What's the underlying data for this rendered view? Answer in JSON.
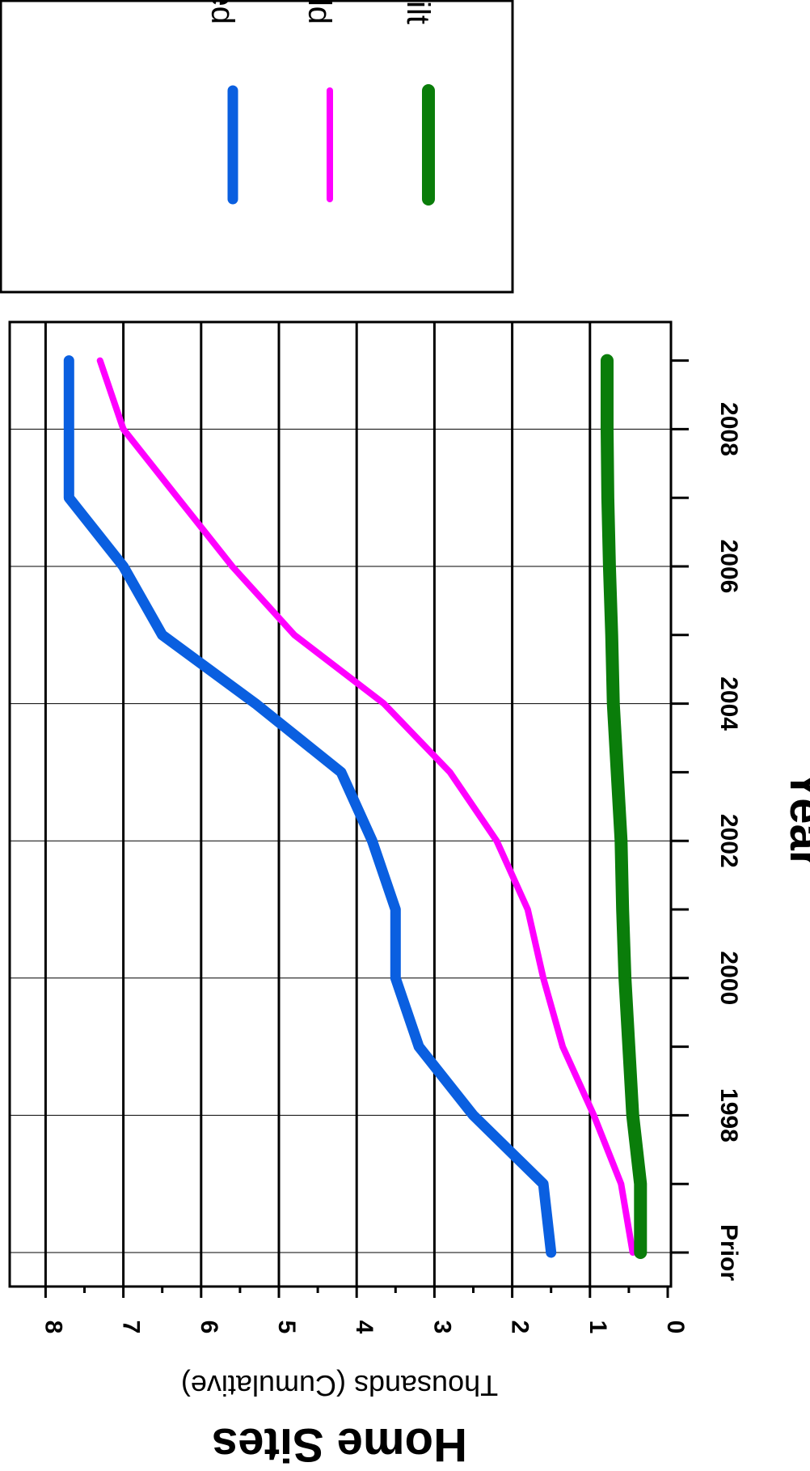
{
  "chart_data": {
    "type": "line",
    "orientation": "rotated-90-clockwise",
    "xlabel": "Year",
    "ylabel": "Home Sites",
    "ylabel_sub": "Thousands (Cumulative)",
    "x_ticks": [
      "Prior",
      "1998",
      "2000",
      "2002",
      "2004",
      "2006",
      "2008"
    ],
    "y_ticks": [
      "0",
      "1",
      "2",
      "3",
      "4",
      "5",
      "6",
      "7",
      "8"
    ],
    "ylim": [
      0,
      8
    ],
    "grid": true,
    "legend_position": "outside-right",
    "x": [
      "Prior",
      "1997",
      "1998",
      "1999",
      "2000",
      "2001",
      "2002",
      "2003",
      "2004",
      "2005",
      "2006",
      "2007",
      "2008",
      "2009"
    ],
    "series": [
      {
        "name": "Lots platted",
        "color": "#0a5fe0",
        "values": [
          1.5,
          1.6,
          2.5,
          3.2,
          3.5,
          3.5,
          3.8,
          4.2,
          5.3,
          6.5,
          7.0,
          7.7,
          7.7,
          7.7
        ]
      },
      {
        "name": "Lots sold",
        "color": "#ff00ff",
        "values": [
          0.45,
          0.6,
          0.95,
          1.35,
          1.6,
          1.8,
          2.2,
          2.8,
          3.65,
          4.8,
          5.6,
          6.3,
          7.0,
          7.3
        ]
      },
      {
        "name": "Homes built",
        "color": "#0a7d0a",
        "values": [
          0.35,
          0.35,
          0.45,
          0.5,
          0.55,
          0.58,
          0.6,
          0.65,
          0.7,
          0.72,
          0.75,
          0.77,
          0.78,
          0.78
        ]
      }
    ]
  }
}
